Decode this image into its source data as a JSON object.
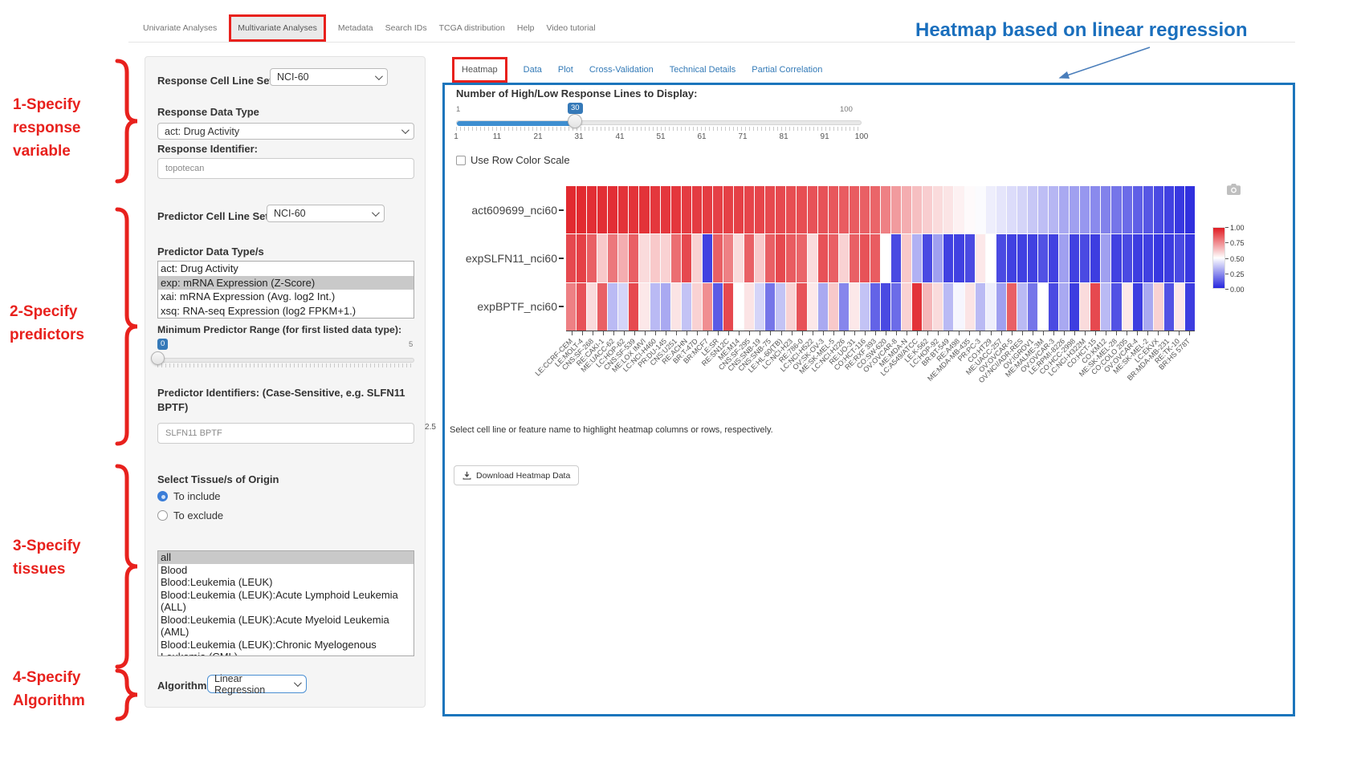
{
  "nav": {
    "items": [
      {
        "label": "Univariate Analyses",
        "active": false
      },
      {
        "label": "Multivariate Analyses",
        "active": true
      },
      {
        "label": "Metadata",
        "active": false
      },
      {
        "label": "Search IDs",
        "active": false
      },
      {
        "label": "TCGA distribution",
        "active": false
      },
      {
        "label": "Help",
        "active": false
      },
      {
        "label": "Video tutorial",
        "active": false
      }
    ]
  },
  "annotation": {
    "heading": "Heatmap based on linear regression",
    "steps": [
      {
        "lines": [
          "1-Specify",
          "response",
          "variable"
        ]
      },
      {
        "lines": [
          "2-Specify",
          "predictors"
        ]
      },
      {
        "lines": [
          "3-Specify",
          "tissues"
        ]
      },
      {
        "lines": [
          "4-Specify",
          "Algorithm"
        ]
      }
    ],
    "red_color": "#e8211d",
    "heading_color": "#1a6fbd"
  },
  "sidebar": {
    "response_cell_line_set_label": "Response Cell Line Set",
    "response_cell_line_set_value": "NCI-60",
    "response_data_type_label": "Response Data Type",
    "response_data_type_value": "act: Drug Activity",
    "response_identifier_label": "Response Identifier:",
    "response_identifier_value": "topotecan",
    "predictor_cell_line_set_label": "Predictor Cell Line Set",
    "predictor_cell_line_set_value": "NCI-60",
    "predictor_data_types_label": "Predictor Data Type/s",
    "predictor_data_types": [
      {
        "label": "act: Drug Activity",
        "selected": false
      },
      {
        "label": "exp: mRNA Expression (Z-Score)",
        "selected": true
      },
      {
        "label": "xai: mRNA Expression (Avg. log2 Int.)",
        "selected": false
      },
      {
        "label": "xsq: RNA-seq Expression (log2 FPKM+1.)",
        "selected": false
      }
    ],
    "min_predictor_range_label": "Minimum Predictor Range (for first listed data type):",
    "min_predictor_range_value": "0",
    "min_predictor_range_max": "5",
    "min_predictor_range_ticks": [
      "0",
      "0.5",
      "1",
      "1.5",
      "2",
      "2.5",
      "3",
      "3.5",
      "4",
      "4.5",
      "5"
    ],
    "predictor_identifiers_label": "Predictor Identifiers: (Case-Sensitive, e.g. SLFN11 BPTF)",
    "predictor_identifiers_value": "SLFN11 BPTF",
    "tissue_section_label": "Select Tissue/s of Origin",
    "tissue_include_label": "To include",
    "tissue_exclude_label": "To exclude",
    "tissue_include_selected": true,
    "tissues": [
      {
        "label": "all",
        "selected": true
      },
      {
        "label": "Blood",
        "selected": false
      },
      {
        "label": "Blood:Leukemia (LEUK)",
        "selected": false
      },
      {
        "label": "Blood:Leukemia (LEUK):Acute Lymphoid Leukemia (ALL)",
        "selected": false
      },
      {
        "label": "Blood:Leukemia (LEUK):Acute Myeloid Leukemia (AML)",
        "selected": false
      },
      {
        "label": "Blood:Leukemia (LEUK):Chronic Myelogenous Leukemia (CML)",
        "selected": false
      }
    ],
    "algorithm_label": "Algorithm",
    "algorithm_value": "Linear Regression"
  },
  "main": {
    "tabs": [
      {
        "label": "Heatmap",
        "active": true
      },
      {
        "label": "Data",
        "active": false
      },
      {
        "label": "Plot",
        "active": false
      },
      {
        "label": "Cross-Validation",
        "active": false
      },
      {
        "label": "Technical Details",
        "active": false
      },
      {
        "label": "Partial Correlation",
        "active": false
      }
    ],
    "slider_label": "Number of High/Low Response Lines to Display:",
    "slider_min": "1",
    "slider_max": "100",
    "slider_value": "30",
    "slider_ticks": [
      "1",
      "11",
      "21",
      "31",
      "41",
      "51",
      "61",
      "71",
      "81",
      "91",
      "100"
    ],
    "row_scale_label": "Use Row Color Scale",
    "hint": "Select cell line or feature name to highlight heatmap columns or rows, respectively.",
    "download_label": "Download Heatmap Data"
  },
  "chart_data": {
    "type": "heatmap",
    "title": "",
    "rows": [
      "act609699_nci60",
      "expSLFN11_nci60",
      "expBPTF_nci60"
    ],
    "columns": [
      "LE:CCRF-CEM",
      "LE:MOLT-4",
      "CNS:SF-268",
      "RE:CAKI-1",
      "ME:UACC-62",
      "LC:HOP-62",
      "CNS:SF-539",
      "ME:LOX IMVI",
      "LC:NCI-H460",
      "PR:DU-145",
      "CNS:U251",
      "RE:ACHN",
      "BR:T-47D",
      "BR:MCF7",
      "LE:SR",
      "RE:SN12C",
      "ME:M14",
      "CNS:SF-295",
      "CNS:SNB-19",
      "CNS:SNB-75",
      "LE:HL-60(TB)",
      "LC:NCI-H23",
      "RE:786-0",
      "LC:NCI-H522",
      "OV:SK-OV-3",
      "ME:SK-MEL-5",
      "LC:NCI-H226",
      "RE:UO-31",
      "CO:HCT-116",
      "RE:RXF 393",
      "CO:SW-620",
      "OV:OVCAR-8",
      "ME:MDA-N",
      "LC:A549/ATCC",
      "LE:K-562",
      "LC:HOP-92",
      "BR:BT-549",
      "RE:A498",
      "ME:MDA-MB-435",
      "PR:PC-3",
      "CO:HT29",
      "ME:UACC-257",
      "OV:OVCAR-5",
      "OV:NCI/ADR-RES",
      "OV:IGROV1",
      "ME:MALME-3M",
      "OV:OVCAR-3",
      "LE:RPMI-8226",
      "CO:HCC-2998",
      "LC:NCI-H322M",
      "CO:HCT-15",
      "CO:KM12",
      "ME:SK-MEL-28",
      "CO:COLO 205",
      "OV:OVCAR-4",
      "ME:SK-MEL-2",
      "LC:EKVX",
      "BR:MDA-MB-231",
      "RE:TK-10",
      "BR:HS 578T"
    ],
    "values": [
      [
        0.97,
        0.97,
        0.96,
        0.96,
        0.96,
        0.95,
        0.95,
        0.95,
        0.94,
        0.94,
        0.94,
        0.93,
        0.93,
        0.93,
        0.92,
        0.92,
        0.92,
        0.91,
        0.91,
        0.9,
        0.9,
        0.89,
        0.89,
        0.88,
        0.88,
        0.87,
        0.86,
        0.86,
        0.85,
        0.84,
        0.78,
        0.72,
        0.68,
        0.64,
        0.61,
        0.58,
        0.56,
        0.53,
        0.51,
        0.49,
        0.46,
        0.44,
        0.42,
        0.4,
        0.37,
        0.35,
        0.33,
        0.3,
        0.28,
        0.26,
        0.23,
        0.21,
        0.18,
        0.16,
        0.13,
        0.11,
        0.08,
        0.06,
        0.04,
        0.02
      ],
      [
        0.9,
        0.92,
        0.85,
        0.62,
        0.8,
        0.68,
        0.85,
        0.58,
        0.62,
        0.6,
        0.82,
        0.9,
        0.6,
        0.06,
        0.85,
        0.78,
        0.58,
        0.85,
        0.62,
        0.85,
        0.9,
        0.86,
        0.84,
        0.58,
        0.88,
        0.85,
        0.6,
        0.85,
        0.88,
        0.86,
        0.5,
        0.08,
        0.62,
        0.32,
        0.08,
        0.28,
        0.06,
        0.06,
        0.08,
        0.55,
        0.5,
        0.08,
        0.06,
        0.06,
        0.06,
        0.1,
        0.06,
        0.28,
        0.06,
        0.08,
        0.05,
        0.28,
        0.06,
        0.08,
        0.05,
        0.06,
        0.04,
        0.05,
        0.08,
        0.04
      ],
      [
        0.78,
        0.88,
        0.58,
        0.85,
        0.34,
        0.4,
        0.9,
        0.55,
        0.34,
        0.3,
        0.56,
        0.36,
        0.6,
        0.75,
        0.12,
        0.9,
        0.5,
        0.56,
        0.4,
        0.18,
        0.36,
        0.6,
        0.88,
        0.55,
        0.3,
        0.62,
        0.22,
        0.55,
        0.36,
        0.14,
        0.08,
        0.16,
        0.6,
        0.95,
        0.66,
        0.58,
        0.34,
        0.48,
        0.56,
        0.34,
        0.46,
        0.28,
        0.85,
        0.34,
        0.18,
        0.5,
        0.08,
        0.3,
        0.05,
        0.58,
        0.9,
        0.34,
        0.1,
        0.55,
        0.05,
        0.3,
        0.6,
        0.1,
        0.55,
        0.05
      ]
    ],
    "colorscale": {
      "min": 0,
      "max": 1,
      "ticks": [
        "1.00",
        "0.75",
        "0.50",
        "0.25",
        "0.00"
      ],
      "high_color": "#e01c23",
      "mid_color": "#ffffff",
      "low_color": "#2727dd",
      "legend_position": "right"
    },
    "grid": false
  }
}
